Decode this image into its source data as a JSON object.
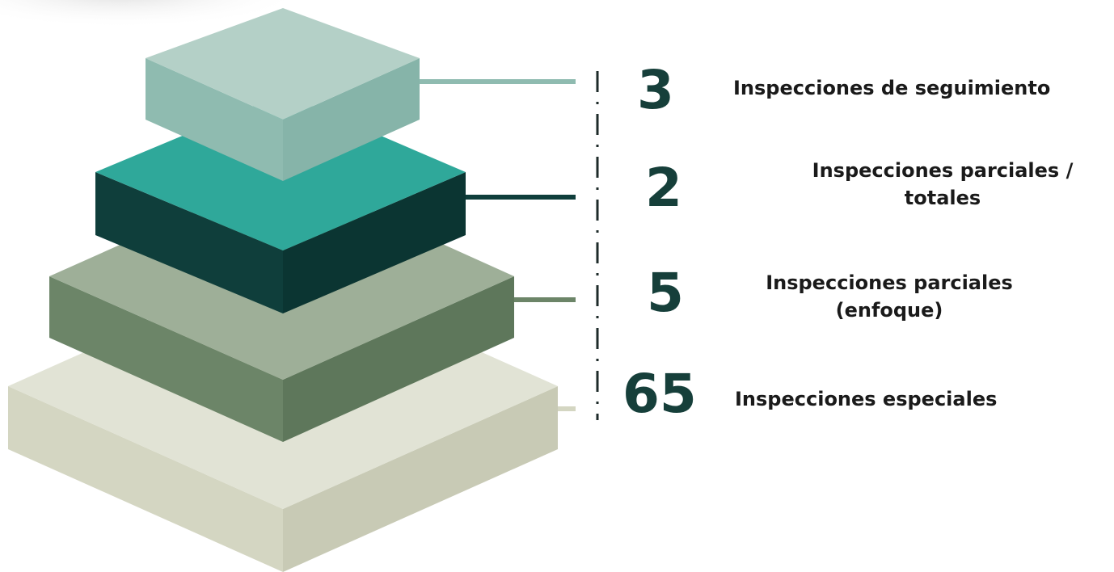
{
  "tiers": [
    {
      "id": "seguimiento",
      "count": "3",
      "label_lines": [
        "Inspecciones de seguimiento"
      ],
      "colors": {
        "top": "#b4d0c7",
        "left": "#8fbbb0",
        "right": "#86b4a9",
        "connector": "#8fbbb0"
      }
    },
    {
      "id": "parciales-totales",
      "count": "2",
      "label_lines": [
        "Inspecciones parciales /",
        "totales"
      ],
      "colors": {
        "top": "#2fa89a",
        "left": "#0f3e3b",
        "right": "#0b3532",
        "connector": "#0f3e3b"
      }
    },
    {
      "id": "parciales-enfoque",
      "count": "5",
      "label_lines": [
        "Inspecciones parciales",
        "(enfoque)"
      ],
      "colors": {
        "top": "#9eaf98",
        "left": "#6c8568",
        "right": "#5e775b",
        "connector": "#6c8568"
      }
    },
    {
      "id": "especiales",
      "count": "65",
      "label_lines": [
        "Inspecciones especiales"
      ],
      "colors": {
        "top": "#e1e3d5",
        "left": "#d4d6c2",
        "right": "#c8cab5",
        "connector": "#d4d6c2"
      }
    }
  ],
  "divider_color": "#1e2b2a"
}
